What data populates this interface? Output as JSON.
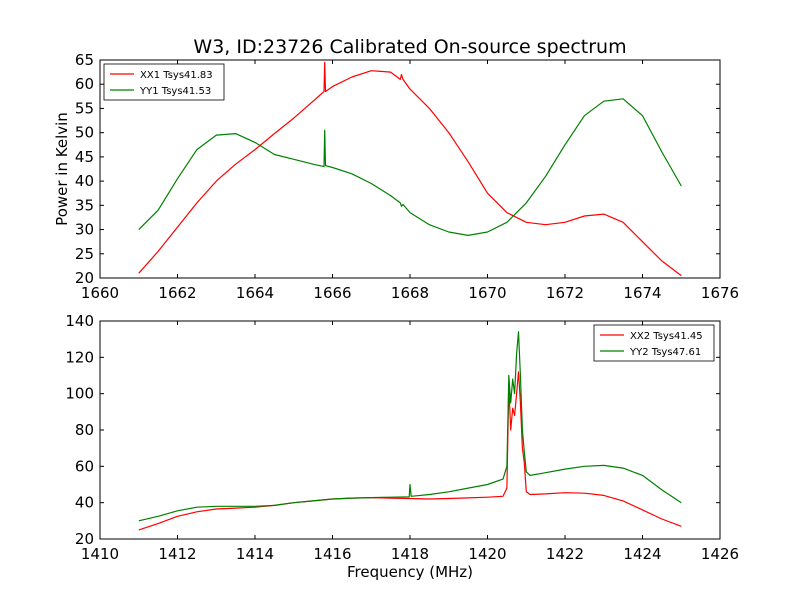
{
  "title": "W3, ID:23726 Calibrated On-source spectrum",
  "chart_data": [
    {
      "type": "line",
      "title": "W3, ID:23726 Calibrated On-source spectrum",
      "xlabel": "",
      "ylabel": "Power in Kelvin",
      "xlim": [
        1660,
        1676
      ],
      "ylim": [
        20,
        65
      ],
      "xticks": [
        "1660",
        "1662",
        "1664",
        "1666",
        "1668",
        "1670",
        "1672",
        "1674",
        "1676"
      ],
      "yticks": [
        "20",
        "25",
        "30",
        "35",
        "40",
        "45",
        "50",
        "55",
        "60",
        "65"
      ],
      "grid": false,
      "legend_position": "top-left",
      "series": [
        {
          "name": "XX1 Tsys41.83",
          "color": "#ff0000",
          "x": [
            1661.0,
            1661.5,
            1662.0,
            1662.5,
            1663.0,
            1663.5,
            1664.0,
            1664.5,
            1665.0,
            1665.5,
            1665.78,
            1665.8,
            1665.82,
            1666.0,
            1666.5,
            1667.0,
            1667.5,
            1667.75,
            1667.78,
            1667.82,
            1668.0,
            1668.5,
            1669.0,
            1669.5,
            1670.0,
            1670.5,
            1671.0,
            1671.5,
            1672.0,
            1672.5,
            1673.0,
            1673.5,
            1674.0,
            1674.5,
            1675.0
          ],
          "values": [
            21,
            25.5,
            30.5,
            35.5,
            40,
            43.5,
            46.5,
            49.8,
            53,
            56.5,
            58.5,
            64.5,
            58.5,
            59.5,
            61.5,
            62.8,
            62.5,
            61,
            62,
            61,
            59,
            55,
            50,
            44,
            37.5,
            33.5,
            31.5,
            31,
            31.5,
            32.8,
            33.2,
            31.5,
            27.5,
            23.5,
            20.5
          ]
        },
        {
          "name": "YY1 Tsys41.53",
          "color": "#008000",
          "x": [
            1661.0,
            1661.5,
            1662.0,
            1662.5,
            1663.0,
            1663.5,
            1664.0,
            1664.5,
            1665.0,
            1665.5,
            1665.78,
            1665.8,
            1665.82,
            1666.0,
            1666.5,
            1667.0,
            1667.5,
            1667.75,
            1667.78,
            1667.82,
            1668.0,
            1668.5,
            1669.0,
            1669.5,
            1670.0,
            1670.5,
            1671.0,
            1671.5,
            1672.0,
            1672.5,
            1673.0,
            1673.5,
            1674.0,
            1674.5,
            1675.0
          ],
          "values": [
            30,
            34,
            40.5,
            46.5,
            49.5,
            49.8,
            48,
            45.5,
            44.5,
            43.5,
            43,
            50.5,
            43.2,
            42.8,
            41.5,
            39.5,
            37,
            35.5,
            34.8,
            35.2,
            33.5,
            31,
            29.5,
            28.8,
            29.5,
            31.5,
            35.5,
            41,
            47.5,
            53.5,
            56.5,
            57,
            53.5,
            46,
            39
          ]
        }
      ]
    },
    {
      "type": "line",
      "title": "",
      "xlabel": "Frequency (MHz)",
      "ylabel": "",
      "xlim": [
        1410,
        1426
      ],
      "ylim": [
        20,
        140
      ],
      "xticks": [
        "1410",
        "1412",
        "1414",
        "1416",
        "1418",
        "1420",
        "1422",
        "1424",
        "1426"
      ],
      "yticks": [
        "20",
        "40",
        "60",
        "80",
        "100",
        "120",
        "140"
      ],
      "grid": false,
      "legend_position": "top-right",
      "series": [
        {
          "name": "XX2 Tsys41.45",
          "color": "#ff0000",
          "x": [
            1411.0,
            1411.5,
            1412.0,
            1412.5,
            1413.0,
            1413.5,
            1414.0,
            1414.5,
            1415.0,
            1415.5,
            1416.0,
            1416.5,
            1417.0,
            1417.5,
            1418.0,
            1418.5,
            1419.0,
            1419.5,
            1420.0,
            1420.4,
            1420.5,
            1420.55,
            1420.6,
            1420.65,
            1420.7,
            1420.75,
            1420.8,
            1420.85,
            1420.9,
            1420.95,
            1421.0,
            1421.1,
            1421.5,
            1422.0,
            1422.5,
            1423.0,
            1423.5,
            1424.0,
            1424.5,
            1425.0
          ],
          "values": [
            25,
            28.5,
            32.5,
            35,
            36.5,
            37,
            37.5,
            38.5,
            40,
            41,
            42,
            42.5,
            42.8,
            42.5,
            42.3,
            42,
            42.3,
            42.6,
            43,
            43.5,
            48,
            105,
            80,
            92,
            88,
            100,
            112,
            95,
            70,
            62,
            46,
            44.5,
            44.8,
            45.5,
            45.2,
            44,
            41,
            36,
            31,
            27
          ]
        },
        {
          "name": "YY2 Tsys47.61",
          "color": "#008000",
          "x": [
            1411.0,
            1411.5,
            1412.0,
            1412.5,
            1413.0,
            1413.5,
            1414.0,
            1414.5,
            1415.0,
            1415.5,
            1416.0,
            1416.5,
            1417.0,
            1417.5,
            1417.98,
            1418.0,
            1418.03,
            1418.5,
            1419.0,
            1419.5,
            1420.0,
            1420.4,
            1420.5,
            1420.55,
            1420.6,
            1420.65,
            1420.7,
            1420.75,
            1420.8,
            1420.85,
            1420.9,
            1420.95,
            1421.0,
            1421.1,
            1421.5,
            1422.0,
            1422.5,
            1423.0,
            1423.5,
            1424.0,
            1424.5,
            1425.0
          ],
          "values": [
            30,
            32.5,
            35.5,
            37.5,
            38,
            38,
            38,
            38.5,
            40,
            41,
            42,
            42.5,
            42.8,
            43,
            43.2,
            50,
            43.5,
            44.5,
            46,
            48,
            50,
            53,
            60,
            110,
            95,
            108,
            100,
            122,
            134,
            110,
            80,
            68,
            57,
            55,
            56.5,
            58.5,
            60,
            60.5,
            59,
            55,
            47,
            40
          ]
        }
      ]
    }
  ]
}
